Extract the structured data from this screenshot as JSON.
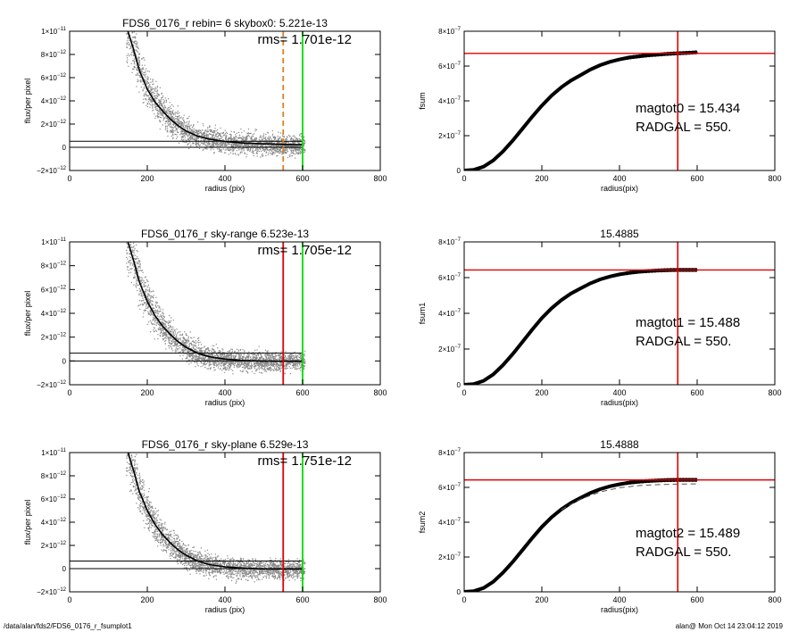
{
  "footer": {
    "left": "/data/alan/fds2/FDS6_0176_r_fsumplot1",
    "right": "alan@  Mon Oct 14 23:04:12 2019"
  },
  "colors": {
    "profile_points": "#888888",
    "profile_curve": "#000000",
    "red_line": "#e00000",
    "green_line": "#00dd00",
    "orange_dash": "#e08020"
  },
  "chart_data": [
    {
      "type": "scatter",
      "title": "FDS6_0176_r rebin= 6    skybox0:  5.221e-13",
      "annotation": "rms= 1.701e-12",
      "xlabel": "radius (pix)",
      "ylabel": "flux/per pixel",
      "xlim": [
        0,
        800
      ],
      "ylim": [
        -2e-12,
        1e-11
      ],
      "xticks": [
        0,
        200,
        400,
        600,
        800
      ],
      "xtick_labels": [
        "0",
        "200",
        "400",
        "600",
        "800"
      ],
      "yticks": [
        -2e-12,
        0,
        2e-12,
        4e-12,
        6e-12,
        8e-12,
        1e-11
      ],
      "ytick_labels": [
        {
          "m": "−2×10",
          "e": "−12"
        },
        {
          "m": "0",
          "e": ""
        },
        {
          "m": "2×10",
          "e": "−12"
        },
        {
          "m": "4×10",
          "e": "−12"
        },
        {
          "m": "6×10",
          "e": "−12"
        },
        {
          "m": "8×10",
          "e": "−12"
        },
        {
          "m": "1×10",
          "e": "−11"
        }
      ],
      "mean_profile": {
        "x": [
          150,
          165,
          180,
          200,
          220,
          240,
          260,
          280,
          300,
          330,
          360,
          400,
          450,
          500,
          550,
          600
        ],
        "y": [
          1e-11,
          8.4e-12,
          6.6e-12,
          5e-12,
          3.9e-12,
          3.1e-12,
          2.4e-12,
          1.85e-12,
          1.4e-12,
          9.5e-13,
          7e-13,
          5e-13,
          3.6e-13,
          3e-13,
          2.5e-13,
          2.2e-13
        ]
      },
      "hlines": [
        0.0,
        5.221e-13
      ],
      "hline_extent": [
        0,
        600
      ],
      "vlines": [
        {
          "x": 550,
          "style": "dashed",
          "color": "orange"
        },
        {
          "x": 600,
          "style": "solid",
          "color": "green"
        }
      ]
    },
    {
      "type": "scatter",
      "title": "",
      "xlabel": "radius(pix)",
      "ylabel": "fsum",
      "xlim": [
        0,
        800
      ],
      "ylim": [
        0,
        8e-07
      ],
      "xticks": [
        0,
        200,
        400,
        600,
        800
      ],
      "xtick_labels": [
        "0",
        "200",
        "400",
        "600",
        "800"
      ],
      "yticks": [
        0,
        2e-07,
        4e-07,
        6e-07,
        8e-07
      ],
      "ytick_labels": [
        {
          "m": "0",
          "e": ""
        },
        {
          "m": "2×10",
          "e": "−7"
        },
        {
          "m": "4×10",
          "e": "−7"
        },
        {
          "m": "6×10",
          "e": "−7"
        },
        {
          "m": "8×10",
          "e": "−7"
        }
      ],
      "growth_curve": {
        "x": [
          0,
          25,
          50,
          75,
          100,
          125,
          150,
          175,
          200,
          225,
          250,
          275,
          300,
          325,
          350,
          375,
          400,
          425,
          450,
          475,
          500,
          525,
          550,
          575,
          600
        ],
        "y": [
          0,
          4e-09,
          2.2e-08,
          5.8e-08,
          1.1e-07,
          1.72e-07,
          2.4e-07,
          3.08e-07,
          3.73e-07,
          4.3e-07,
          4.78e-07,
          5.17e-07,
          5.48e-07,
          5.8e-07,
          6.05e-07,
          6.24e-07,
          6.38e-07,
          6.49e-07,
          6.56e-07,
          6.62e-07,
          6.66e-07,
          6.7e-07,
          6.73e-07,
          6.76e-07,
          6.79e-07
        ]
      },
      "red_hline": 6.73e-07,
      "red_vline": 550,
      "text_lines": [
        "magtot0 =  15.434",
        "RADGAL =    550."
      ]
    },
    {
      "type": "scatter",
      "title": "FDS6_0176_r sky-range  6.523e-13",
      "annotation": "rms= 1.705e-12",
      "xlabel": "radius (pix)",
      "ylabel": "flux/per pixel",
      "xlim": [
        0,
        800
      ],
      "ylim": [
        -2e-12,
        1e-11
      ],
      "xticks": [
        0,
        200,
        400,
        600,
        800
      ],
      "xtick_labels": [
        "0",
        "200",
        "400",
        "600",
        "800"
      ],
      "yticks": [
        -2e-12,
        0,
        2e-12,
        4e-12,
        6e-12,
        8e-12,
        1e-11
      ],
      "ytick_labels": [
        {
          "m": "−2×10",
          "e": "−12"
        },
        {
          "m": "0",
          "e": ""
        },
        {
          "m": "2×10",
          "e": "−12"
        },
        {
          "m": "4×10",
          "e": "−12"
        },
        {
          "m": "6×10",
          "e": "−12"
        },
        {
          "m": "8×10",
          "e": "−12"
        },
        {
          "m": "1×10",
          "e": "−11"
        }
      ],
      "mean_profile": {
        "x": [
          150,
          165,
          180,
          200,
          220,
          240,
          260,
          280,
          300,
          330,
          360,
          400,
          450,
          500,
          550,
          600
        ],
        "y": [
          1e-11,
          8.4e-12,
          6.6e-12,
          5e-12,
          3.8e-12,
          2.9e-12,
          2.2e-12,
          1.6e-12,
          1.15e-12,
          6.5e-13,
          3.5e-13,
          1.5e-13,
          3e-14,
          -2e-14,
          -3e-14,
          -3e-14
        ]
      },
      "hlines": [
        0.0,
        6.523e-13
      ],
      "hline_extent": [
        0,
        600
      ],
      "vlines": [
        {
          "x": 550,
          "style": "solid",
          "color": "red"
        },
        {
          "x": 600,
          "style": "solid",
          "color": "green"
        }
      ]
    },
    {
      "type": "scatter",
      "title": "15.4885",
      "xlabel": "radius(pix)",
      "ylabel": "fsum1",
      "xlim": [
        0,
        800
      ],
      "ylim": [
        0,
        8e-07
      ],
      "xticks": [
        0,
        200,
        400,
        600,
        800
      ],
      "xtick_labels": [
        "0",
        "200",
        "400",
        "600",
        "800"
      ],
      "yticks": [
        0,
        2e-07,
        4e-07,
        6e-07,
        8e-07
      ],
      "ytick_labels": [
        {
          "m": "0",
          "e": ""
        },
        {
          "m": "2×10",
          "e": "−7"
        },
        {
          "m": "4×10",
          "e": "−7"
        },
        {
          "m": "6×10",
          "e": "−7"
        },
        {
          "m": "8×10",
          "e": "−7"
        }
      ],
      "growth_curve": {
        "x": [
          0,
          25,
          50,
          75,
          100,
          125,
          150,
          175,
          200,
          225,
          250,
          275,
          300,
          325,
          350,
          375,
          400,
          425,
          450,
          475,
          500,
          525,
          550,
          575,
          600
        ],
        "y": [
          0,
          4e-09,
          2.2e-08,
          5.8e-08,
          1.1e-07,
          1.72e-07,
          2.4e-07,
          3.08e-07,
          3.73e-07,
          4.28e-07,
          4.74e-07,
          5.11e-07,
          5.4e-07,
          5.68e-07,
          5.9e-07,
          6.06e-07,
          6.18e-07,
          6.27e-07,
          6.33e-07,
          6.37e-07,
          6.4e-07,
          6.42e-07,
          6.43e-07,
          6.43e-07,
          6.43e-07
        ]
      },
      "red_hline": 6.43e-07,
      "red_vline": 550,
      "text_lines": [
        "magtot1 =  15.488",
        "RADGAL =    550."
      ]
    },
    {
      "type": "scatter",
      "title": "FDS6_0176_r sky-plane  6.529e-13",
      "annotation": "rms= 1.751e-12",
      "xlabel": "radius (pix)",
      "ylabel": "flux/per pixel",
      "xlim": [
        0,
        800
      ],
      "ylim": [
        -2e-12,
        1e-11
      ],
      "xticks": [
        0,
        200,
        400,
        600,
        800
      ],
      "xtick_labels": [
        "0",
        "200",
        "400",
        "600",
        "800"
      ],
      "yticks": [
        -2e-12,
        0,
        2e-12,
        4e-12,
        6e-12,
        8e-12,
        1e-11
      ],
      "ytick_labels": [
        {
          "m": "−2×10",
          "e": "−12"
        },
        {
          "m": "0",
          "e": ""
        },
        {
          "m": "2×10",
          "e": "−12"
        },
        {
          "m": "4×10",
          "e": "−12"
        },
        {
          "m": "6×10",
          "e": "−12"
        },
        {
          "m": "8×10",
          "e": "−12"
        },
        {
          "m": "1×10",
          "e": "−11"
        }
      ],
      "mean_profile": {
        "x": [
          150,
          165,
          180,
          200,
          220,
          240,
          260,
          280,
          300,
          330,
          360,
          400,
          450,
          500,
          550,
          600
        ],
        "y": [
          1e-11,
          8.4e-12,
          6.6e-12,
          5e-12,
          3.8e-12,
          2.9e-12,
          2.2e-12,
          1.6e-12,
          1.15e-12,
          6.5e-13,
          3.5e-13,
          1.5e-13,
          3e-14,
          -2e-14,
          -3e-14,
          -3e-14
        ]
      },
      "hlines": [
        0.0,
        6.529e-13
      ],
      "hline_extent": [
        0,
        600
      ],
      "vlines": [
        {
          "x": 550,
          "style": "solid",
          "color": "red"
        },
        {
          "x": 600,
          "style": "solid",
          "color": "green"
        }
      ]
    },
    {
      "type": "scatter",
      "title": "15.4888",
      "xlabel": "radius(pix)",
      "ylabel": "fsum2",
      "xlim": [
        0,
        800
      ],
      "ylim": [
        0,
        8e-07
      ],
      "xticks": [
        0,
        200,
        400,
        600,
        800
      ],
      "xtick_labels": [
        "0",
        "200",
        "400",
        "600",
        "800"
      ],
      "yticks": [
        0,
        2e-07,
        4e-07,
        6e-07,
        8e-07
      ],
      "ytick_labels": [
        {
          "m": "0",
          "e": ""
        },
        {
          "m": "2×10",
          "e": "−7"
        },
        {
          "m": "4×10",
          "e": "−7"
        },
        {
          "m": "6×10",
          "e": "−7"
        },
        {
          "m": "8×10",
          "e": "−7"
        }
      ],
      "growth_curve": {
        "x": [
          0,
          25,
          50,
          75,
          100,
          125,
          150,
          175,
          200,
          225,
          250,
          275,
          300,
          325,
          350,
          375,
          400,
          425,
          450,
          475,
          500,
          525,
          550,
          575,
          600
        ],
        "y": [
          0,
          4e-09,
          2.2e-08,
          5.8e-08,
          1.1e-07,
          1.72e-07,
          2.4e-07,
          3.08e-07,
          3.73e-07,
          4.28e-07,
          4.74e-07,
          5.11e-07,
          5.4e-07,
          5.68e-07,
          5.9e-07,
          6.06e-07,
          6.18e-07,
          6.27e-07,
          6.33e-07,
          6.37e-07,
          6.4e-07,
          6.42e-07,
          6.43e-07,
          6.43e-07,
          6.43e-07
        ]
      },
      "dashed_curve": {
        "x": [
          250,
          300,
          350,
          400,
          450,
          500,
          550,
          600
        ],
        "y": [
          4.72e-07,
          5.33e-07,
          5.74e-07,
          5.98e-07,
          6.1e-07,
          6.16e-07,
          6.19e-07,
          6.2e-07
        ]
      },
      "red_hline": 6.43e-07,
      "red_vline": 550,
      "text_lines": [
        "magtot2 =  15.489",
        "RADGAL =    550."
      ]
    }
  ]
}
